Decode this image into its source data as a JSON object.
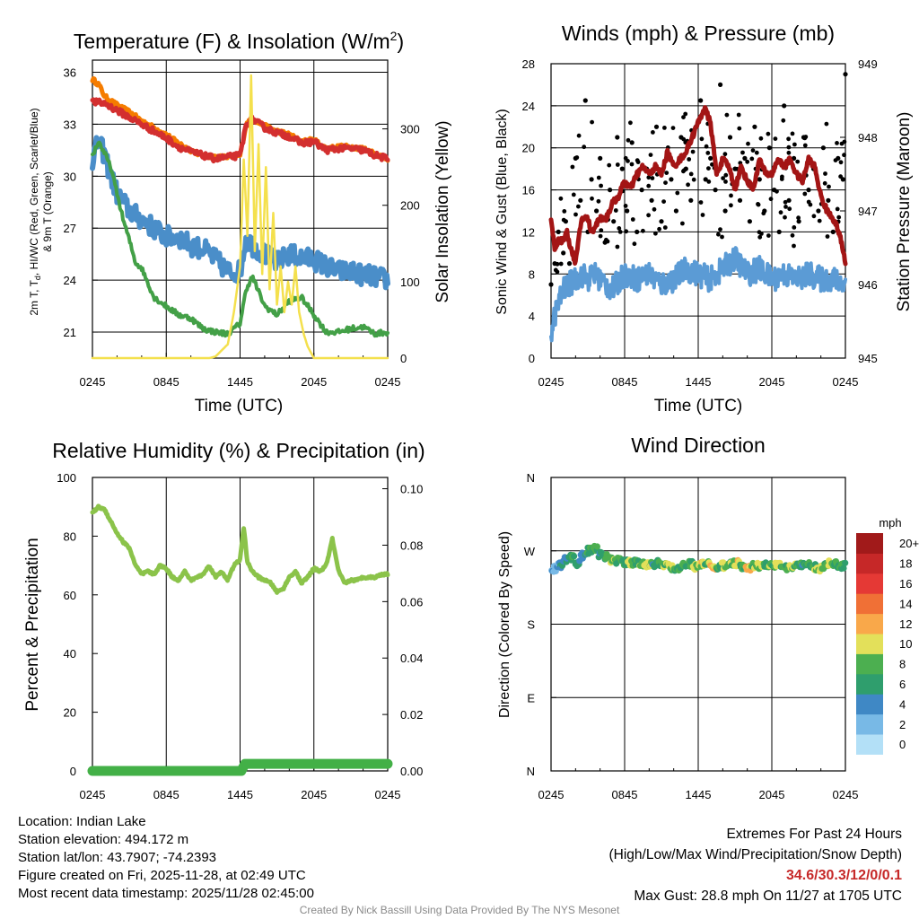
{
  "chart_data": [
    {
      "type": "line",
      "title_main": "Temperature (F) & Insolation (W/m",
      "title_sup": "2",
      "title_end": ")",
      "xlabel": "Time (UTC)",
      "ylabel_line1": "2m T, T",
      "ylabel_sub": "d",
      "ylabel_line1_end": ", HI/WC (Red, Green, Scarlet/Blue)",
      "ylabel_line2": "& 9m T (Orange)",
      "ylabel_right": "Solar Insolation (Yellow)",
      "x_tick_labels": [
        "0245",
        "0845",
        "1445",
        "2045",
        "0245"
      ],
      "x_ticks_hours": [
        0,
        6,
        12,
        18,
        24
      ],
      "ylim": [
        19.5,
        36.7
      ],
      "yticks": [
        21,
        24,
        27,
        30,
        33,
        36
      ],
      "ylim_right": [
        0,
        390
      ],
      "yticks_right": [
        0,
        100,
        200,
        300
      ],
      "series": [
        {
          "name": "2m Temperature",
          "color": "#d32f2f",
          "x": [
            0,
            1,
            2,
            3,
            4,
            5,
            6,
            7,
            8,
            9,
            10,
            11,
            12,
            12.5,
            13,
            14,
            15,
            16,
            17,
            18,
            19,
            20,
            21,
            22,
            23,
            24
          ],
          "values": [
            34.3,
            34.2,
            33.8,
            33.4,
            33.0,
            32.6,
            32.2,
            31.7,
            31.4,
            31.2,
            31.0,
            31.1,
            31.2,
            33.0,
            33.3,
            32.8,
            32.5,
            32.3,
            31.9,
            32.0,
            31.5,
            31.6,
            31.6,
            31.5,
            31.2,
            31.0
          ]
        },
        {
          "name": "9m Temperature",
          "color": "#f57c00",
          "x": [
            0,
            0.5,
            1,
            2,
            3,
            4,
            5,
            6,
            7,
            8,
            9,
            10,
            11,
            12,
            12.5,
            13,
            14,
            15,
            16,
            17,
            18,
            19,
            20,
            21,
            22,
            23,
            24
          ],
          "values": [
            35.6,
            35.3,
            34.6,
            34.1,
            33.7,
            33.2,
            32.8,
            32.4,
            31.9,
            31.5,
            31.2,
            31.1,
            31.1,
            31.2,
            33.0,
            33.3,
            32.9,
            32.6,
            32.4,
            32.0,
            32.1,
            31.6,
            31.7,
            31.7,
            31.6,
            31.3,
            31.0
          ]
        },
        {
          "name": "Dewpoint",
          "color": "#43a047",
          "x": [
            0,
            0.5,
            1,
            1.5,
            2,
            2.5,
            3,
            3.5,
            4,
            5,
            6,
            7,
            8,
            9,
            10,
            11,
            12,
            12.5,
            13,
            14,
            15,
            16,
            17,
            18,
            19,
            20,
            21,
            22,
            23,
            24
          ],
          "values": [
            31.2,
            32.0,
            31.3,
            30.5,
            29.0,
            27.5,
            26.3,
            25.0,
            24.7,
            23.0,
            22.5,
            22.0,
            21.8,
            21.2,
            21.0,
            20.9,
            21.5,
            23.5,
            24.2,
            22.5,
            22.0,
            22.8,
            23.0,
            22.0,
            21.0,
            21.0,
            21.2,
            21.3,
            20.9,
            21.0
          ]
        },
        {
          "name": "Heat Index / Wind Chill",
          "color": "#4a8ec9",
          "x": [
            0,
            0.5,
            1,
            1.5,
            2,
            3,
            4,
            5,
            6,
            7,
            8,
            9,
            10,
            11,
            12,
            12.5,
            13,
            14,
            15,
            16,
            17,
            18,
            19,
            20,
            21,
            22,
            23,
            24
          ],
          "values": [
            31.0,
            32.0,
            31.2,
            30.0,
            29.0,
            28.0,
            27.5,
            27.0,
            26.5,
            26.5,
            26.0,
            25.8,
            25.2,
            24.5,
            24.5,
            26.5,
            26.0,
            25.5,
            25.0,
            25.5,
            25.3,
            25.2,
            24.8,
            24.5,
            24.5,
            24.3,
            24.2,
            24.0
          ]
        },
        {
          "name": "Solar Insolation",
          "color": "#f4e04d",
          "axis": "right",
          "x": [
            0,
            9.5,
            10,
            11,
            11.5,
            12,
            12.3,
            12.6,
            12.9,
            13.2,
            13.5,
            13.8,
            14.1,
            14.4,
            14.7,
            15,
            15.3,
            15.6,
            15.9,
            16.2,
            16.5,
            16.8,
            17.2,
            17.5,
            18,
            24
          ],
          "values": [
            0,
            0,
            2,
            18,
            60,
            120,
            260,
            160,
            370,
            140,
            280,
            110,
            250,
            90,
            190,
            70,
            120,
            60,
            100,
            70,
            120,
            60,
            30,
            15,
            0,
            0
          ]
        }
      ]
    },
    {
      "type": "line",
      "title": "Winds (mph) & Pressure (mb)",
      "xlabel": "Time (UTC)",
      "ylabel": "Sonic Wind & Gust (Blue, Black)",
      "ylabel_right": "Station Pressure (Maroon)",
      "x_tick_labels": [
        "0245",
        "0845",
        "1445",
        "2045",
        "0245"
      ],
      "x_ticks_hours": [
        0,
        6,
        12,
        18,
        24
      ],
      "ylim": [
        0,
        28
      ],
      "yticks": [
        0,
        4,
        8,
        12,
        16,
        20,
        24,
        28
      ],
      "ylim_right": [
        945,
        949
      ],
      "yticks_right": [
        945,
        946,
        947,
        948,
        949
      ],
      "series": [
        {
          "name": "Sustained Wind",
          "color": "#5b9bd5",
          "x": [
            0,
            0.2,
            0.4,
            0.7,
            1,
            1.5,
            2,
            2.5,
            3,
            3.5,
            4,
            5,
            6,
            7,
            8,
            9,
            10,
            11,
            12,
            13,
            14,
            15,
            16,
            17,
            18,
            19,
            20,
            21,
            22,
            23,
            24
          ],
          "values": [
            2.5,
            3.5,
            4.5,
            5.5,
            6.5,
            7.0,
            7.5,
            8.0,
            7.5,
            8.0,
            7.5,
            6.5,
            8.0,
            7.5,
            8.0,
            7.0,
            7.5,
            8.5,
            8.0,
            7.5,
            8.5,
            9.5,
            8.0,
            8.5,
            7.5,
            8.0,
            7.5,
            8.0,
            7.5,
            7.5,
            7.0
          ]
        },
        {
          "name": "Wind Gust",
          "color": "#000000",
          "style": "points",
          "x": [
            0,
            0.3,
            0.6,
            1,
            1.2,
            1.5,
            2,
            2.4,
            2.8,
            3,
            3.3,
            3.7,
            4,
            4.4,
            4.8,
            5.1,
            5.4,
            5.8,
            6.2,
            6.6,
            7,
            7.4,
            7.8,
            8.2,
            8.6,
            9,
            9.4,
            9.8,
            10.2,
            10.6,
            11,
            11.4,
            11.8,
            12.2,
            12.6,
            13,
            13.4,
            13.8,
            14.2,
            14.6,
            15,
            15.4,
            15.8,
            16.2,
            16.6,
            17,
            17.4,
            17.8,
            18.2,
            18.6,
            19,
            19.4,
            19.8,
            20.2,
            20.6,
            21,
            21.4,
            21.8,
            22.2,
            22.6,
            23,
            23.4,
            23.8,
            24
          ],
          "values": [
            7,
            9,
            12,
            10,
            13,
            9,
            19,
            15,
            24.5,
            12,
            17,
            14,
            19,
            11,
            16,
            13,
            21,
            18,
            14,
            20.5,
            12,
            16,
            18,
            15,
            22,
            13,
            19,
            17,
            14,
            21,
            18,
            15,
            22,
            24.5,
            17,
            19,
            16,
            26,
            14,
            21,
            18,
            15,
            19,
            13,
            22,
            17,
            14,
            20,
            16,
            12,
            24,
            15,
            19,
            13,
            21,
            16,
            18,
            14,
            20,
            15,
            12,
            19,
            17,
            27
          ]
        },
        {
          "name": "Station Pressure",
          "color": "#a31515",
          "axis": "right",
          "x": [
            0,
            0.3,
            0.6,
            1,
            1.3,
            1.6,
            2,
            2.5,
            3,
            3.3,
            3.6,
            4,
            4.5,
            5,
            5.5,
            6,
            6.5,
            7,
            7.5,
            8,
            8.5,
            9,
            9.5,
            10,
            10.5,
            11,
            11.5,
            12,
            12.5,
            13,
            13.5,
            14,
            14.5,
            15,
            15.5,
            16,
            16.5,
            17,
            17.5,
            18,
            18.5,
            19,
            19.5,
            20,
            20.5,
            21,
            21.5,
            22,
            22.5,
            23,
            23.5,
            24
          ],
          "values": [
            946.9,
            946.5,
            946.6,
            946.6,
            946.7,
            946.5,
            946.3,
            946.9,
            946.9,
            946.7,
            946.8,
            946.9,
            946.9,
            947.1,
            947.2,
            947.4,
            947.3,
            947.5,
            947.6,
            947.5,
            947.6,
            947.5,
            947.8,
            947.6,
            947.7,
            947.8,
            948.0,
            948.2,
            948.4,
            948.2,
            947.5,
            947.7,
            947.6,
            947.3,
            947.6,
            947.4,
            947.3,
            947.7,
            947.5,
            947.5,
            947.7,
            947.6,
            947.7,
            947.5,
            947.4,
            947.7,
            947.6,
            947.2,
            947.0,
            946.9,
            946.7,
            946.3
          ]
        }
      ]
    },
    {
      "type": "line",
      "title": "Relative Humidity (%) & Precipitation (in)",
      "xlabel": "",
      "ylabel": "Percent & Precipitation",
      "x_tick_labels": [
        "0245",
        "0845",
        "1445",
        "2045",
        "0245"
      ],
      "x_ticks_hours": [
        0,
        6,
        12,
        18,
        24
      ],
      "ylim": [
        0,
        100
      ],
      "yticks": [
        0,
        20,
        40,
        60,
        80,
        100
      ],
      "ylim_right": [
        0,
        0.104
      ],
      "yticks_right": [
        "0.00",
        "0.02",
        "0.04",
        "0.06",
        "0.08",
        "0.10"
      ],
      "series": [
        {
          "name": "Relative Humidity",
          "color": "#8bc34a",
          "x": [
            0,
            0.5,
            1,
            1.5,
            2,
            2.5,
            3,
            3.5,
            4,
            4.5,
            5,
            5.5,
            6,
            6.5,
            7,
            7.5,
            8,
            8.5,
            9,
            9.5,
            10,
            10.5,
            11,
            11.5,
            12,
            12.3,
            12.6,
            13,
            13.5,
            14,
            14.5,
            15,
            15.5,
            16,
            16.5,
            17,
            17.5,
            18,
            18.5,
            19,
            19.5,
            20,
            20.5,
            21,
            21.5,
            22,
            22.5,
            23,
            23.5,
            24
          ],
          "values": [
            88,
            90,
            89,
            85,
            81,
            78,
            76,
            70,
            67,
            68,
            67,
            70,
            69,
            66,
            65,
            68,
            65,
            66,
            67,
            70,
            66,
            68,
            65,
            70,
            72,
            83,
            71,
            68,
            66,
            65,
            64,
            61,
            62,
            66,
            68,
            64,
            66,
            69,
            68,
            70,
            79,
            68,
            64,
            65,
            65,
            66,
            66,
            66,
            67,
            67
          ]
        },
        {
          "name": "Precipitation (accumulated)",
          "color": "#43b047",
          "axis": "right",
          "x": [
            0,
            12.1,
            12.4,
            24
          ],
          "values": [
            0.0,
            0.0,
            0.0025,
            0.0025
          ]
        }
      ]
    },
    {
      "type": "scatter",
      "title": "Wind Direction",
      "ylabel": "Direction (Colored By Speed)",
      "x_tick_labels": [
        "0245",
        "0845",
        "1445",
        "2045",
        "0245"
      ],
      "x_ticks_hours": [
        0,
        6,
        12,
        18,
        24
      ],
      "y_tick_labels": [
        "N",
        "E",
        "S",
        "W",
        "N"
      ],
      "yticks_deg": [
        0,
        90,
        180,
        270,
        360
      ],
      "colorbar": {
        "unit": "mph",
        "labels": [
          "0",
          "2",
          "4",
          "6",
          "8",
          "10",
          "12",
          "14",
          "16",
          "18",
          "20+"
        ],
        "colors": [
          "#b3e0f7",
          "#78b9e6",
          "#3f88c5",
          "#2f9e6d",
          "#4caf50",
          "#e3e05a",
          "#f9a84a",
          "#f07036",
          "#e53935",
          "#c62828",
          "#a11a1a"
        ]
      },
      "points_deg": [
        248,
        252,
        260,
        262,
        255,
        264,
        270,
        272,
        266,
        262,
        258,
        258,
        256,
        255,
        256,
        254,
        252,
        254,
        255,
        252,
        250,
        248,
        252,
        254,
        250,
        253,
        255,
        251,
        249,
        252,
        254,
        255,
        250,
        248,
        252,
        251,
        254,
        253,
        252,
        250,
        249,
        251,
        253,
        252,
        250,
        248,
        252,
        254,
        253,
        252
      ],
      "points_speed": [
        3,
        4,
        5,
        7,
        6,
        5,
        7,
        7,
        6,
        7,
        8,
        7,
        6,
        9,
        7,
        8,
        10,
        6,
        7,
        8,
        9,
        8,
        7,
        6,
        9,
        10,
        8,
        11,
        7,
        9,
        8,
        10,
        7,
        12,
        8,
        9,
        7,
        8,
        10,
        7,
        9,
        8,
        6,
        7,
        8,
        9,
        7,
        8,
        6,
        7
      ]
    }
  ],
  "info": {
    "location": "Location: Indian Lake",
    "elevation": "Station elevation: 494.172 m",
    "latlon": "Station lat/lon: 43.7907; -74.2393",
    "created": "Figure created on Fri, 2025-11-28, at 02:49 UTC",
    "recent": "Most recent data timestamp: 2025/11/28 02:45:00"
  },
  "extremes": {
    "title": "Extremes For Past 24 Hours",
    "subtitle": "(High/Low/Max Wind/Precipitation/Snow Depth)",
    "values": "34.6/30.3/12/0/0.1",
    "max_gust": "Max Gust: 28.8 mph On 11/27 at 1705 UTC"
  },
  "credit": "Created By Nick Bassill Using Data Provided By The NYS Mesonet"
}
